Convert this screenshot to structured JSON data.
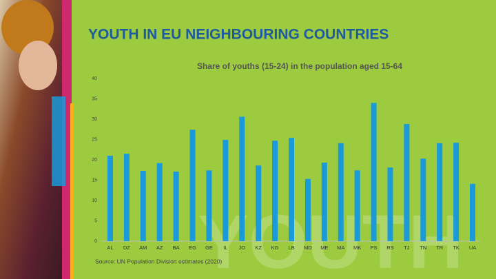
{
  "header": {
    "title": "YOUTH IN EU NEIGHBOURING COUNTRIES",
    "watermark": "YOUTH"
  },
  "chart_data": {
    "type": "bar",
    "title": "Share of youths (15-24) in the population aged 15-64",
    "categories": [
      "AL",
      "DZ",
      "AM",
      "AZ",
      "BA",
      "EG",
      "GE",
      "IL",
      "JO",
      "KZ",
      "KG",
      "LB",
      "MD",
      "ME",
      "MA",
      "MK",
      "PS",
      "RS",
      "TJ",
      "TN",
      "TR",
      "TK",
      "UA"
    ],
    "values": [
      21,
      21.5,
      17.3,
      19.2,
      17.1,
      27.4,
      17.4,
      24.9,
      30.6,
      18.6,
      24.7,
      25.4,
      15.3,
      19.3,
      24.1,
      17.4,
      34,
      18.1,
      28.8,
      20.3,
      24.1,
      24.2,
      14.1
    ],
    "color": "#1a9ad8",
    "ylim": [
      0,
      40
    ],
    "yticks": [
      0,
      5,
      10,
      15,
      20,
      25,
      30,
      35,
      40
    ],
    "grid": false,
    "source": "Source: UN Population Division estimates (2020)"
  }
}
